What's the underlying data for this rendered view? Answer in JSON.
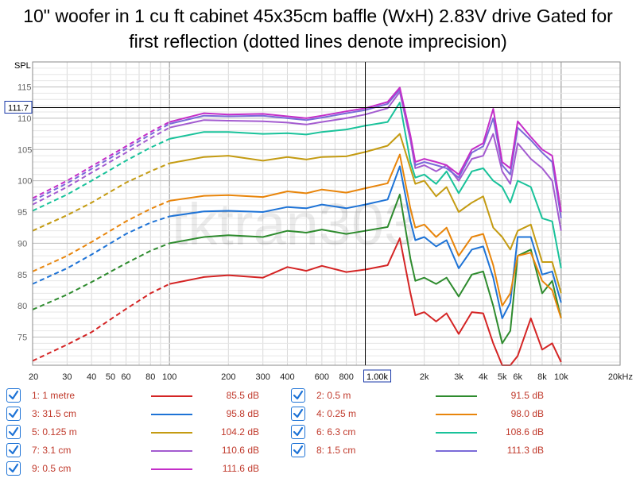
{
  "title": {
    "line1": "10\" woofer in 1 cu ft cabinet 45x35cm baffle (WxH) 2.83V drive Gated for",
    "line2": "first reflection (dotted lines denote imprecision)"
  },
  "chart_data": {
    "type": "line",
    "title": "10\" woofer in 1 cu ft cabinet 45x35cm baffle (WxH) 2.83V drive Gated for first reflection (dotted lines denote imprecision)",
    "ylabel": "SPL",
    "xlabel": "",
    "xscale": "log",
    "xlim": [
      20,
      20000
    ],
    "ylim": [
      70.5,
      119
    ],
    "x_ticks": [
      {
        "v": 20,
        "label": "20"
      },
      {
        "v": 30,
        "label": "30"
      },
      {
        "v": 40,
        "label": "40"
      },
      {
        "v": 50,
        "label": "50"
      },
      {
        "v": 60,
        "label": "60"
      },
      {
        "v": 80,
        "label": "80"
      },
      {
        "v": 100,
        "label": "100"
      },
      {
        "v": 200,
        "label": "200"
      },
      {
        "v": 300,
        "label": "300"
      },
      {
        "v": 400,
        "label": "400"
      },
      {
        "v": 600,
        "label": "600"
      },
      {
        "v": 800,
        "label": "800"
      },
      {
        "v": 2000,
        "label": "2k"
      },
      {
        "v": 3000,
        "label": "3k"
      },
      {
        "v": 4000,
        "label": "4k"
      },
      {
        "v": 5000,
        "label": "5k"
      },
      {
        "v": 6000,
        "label": "6k"
      },
      {
        "v": 8000,
        "label": "8k"
      },
      {
        "v": 10000,
        "label": "10k"
      },
      {
        "v": 20000,
        "label": "20kHz"
      }
    ],
    "y_ticks": [
      75,
      80,
      85,
      90,
      95,
      100,
      105,
      110,
      115
    ],
    "cursor": {
      "x": 1000,
      "x_label": "1.00k",
      "y": 111.7,
      "y_label": "111.7"
    },
    "watermark": "tktran303",
    "dashed_below_hz": 100,
    "series": [
      {
        "name": "1: 1 metre",
        "value_label": "85.5 dB",
        "color": "#d42424",
        "x": [
          20,
          30,
          40,
          60,
          80,
          100,
          150,
          200,
          300,
          400,
          500,
          600,
          800,
          1000,
          1300,
          1500,
          1700,
          1800,
          2000,
          2300,
          2600,
          3000,
          3500,
          4000,
          4500,
          5000,
          5500,
          6000,
          7000,
          8000,
          9000,
          10000
        ],
        "y": [
          71.2,
          73.8,
          75.8,
          79.5,
          82.0,
          83.5,
          84.6,
          84.9,
          84.5,
          86.2,
          85.6,
          86.4,
          85.4,
          85.8,
          86.5,
          90.8,
          82.0,
          78.5,
          79.0,
          77.5,
          78.8,
          75.5,
          79.0,
          78.8,
          74.0,
          70.0,
          70.5,
          72.0,
          78.0,
          73.0,
          74.0,
          71.0
        ]
      },
      {
        "name": "2: 0.5 m",
        "value_label": "91.5 dB",
        "color": "#2e8b2e",
        "x": [
          20,
          30,
          40,
          60,
          80,
          100,
          150,
          200,
          300,
          400,
          500,
          600,
          800,
          1000,
          1300,
          1500,
          1700,
          1800,
          2000,
          2300,
          2600,
          3000,
          3500,
          4000,
          4500,
          5000,
          5500,
          6000,
          7000,
          8000,
          9000,
          10000
        ],
        "y": [
          79.4,
          81.8,
          83.8,
          86.8,
          88.8,
          90.0,
          91.0,
          91.3,
          91.0,
          92.0,
          91.7,
          92.2,
          91.5,
          92.0,
          92.6,
          97.8,
          87.5,
          84.0,
          84.5,
          83.5,
          84.5,
          81.5,
          85.0,
          85.5,
          80.0,
          74.0,
          76.0,
          88.0,
          89.0,
          82.0,
          84.0,
          78.0
        ]
      },
      {
        "name": "3: 31.5 cm",
        "value_label": "95.8 dB",
        "color": "#1e73d6",
        "x": [
          20,
          30,
          40,
          60,
          80,
          100,
          150,
          200,
          300,
          400,
          500,
          600,
          800,
          1000,
          1300,
          1500,
          1700,
          1800,
          2000,
          2300,
          2600,
          3000,
          3500,
          4000,
          4500,
          5000,
          5500,
          6000,
          7000,
          8000,
          9000,
          10000
        ],
        "y": [
          83.5,
          86.0,
          88.2,
          91.5,
          93.3,
          94.3,
          95.1,
          95.2,
          95.0,
          95.8,
          95.6,
          96.2,
          95.6,
          96.2,
          97.0,
          102.3,
          93.5,
          90.5,
          91.0,
          89.5,
          90.5,
          86.0,
          89.0,
          89.5,
          84.5,
          78.0,
          80.5,
          91.0,
          91.0,
          85.0,
          85.5,
          80.5
        ]
      },
      {
        "name": "4: 0.25 m",
        "value_label": "98.0 dB",
        "color": "#e8850b",
        "x": [
          20,
          30,
          40,
          60,
          80,
          100,
          150,
          200,
          300,
          400,
          500,
          600,
          800,
          1000,
          1300,
          1500,
          1700,
          1800,
          2000,
          2300,
          2600,
          3000,
          3500,
          4000,
          4500,
          5000,
          5500,
          6000,
          7000,
          8000,
          9000,
          10000
        ],
        "y": [
          85.5,
          88.0,
          90.2,
          93.5,
          95.5,
          96.8,
          97.6,
          97.7,
          97.4,
          98.3,
          98.0,
          98.6,
          98.1,
          98.8,
          99.6,
          104.2,
          95.5,
          92.5,
          93.0,
          91.0,
          92.5,
          88.0,
          91.0,
          91.5,
          86.5,
          80.0,
          82.0,
          88.0,
          88.5,
          84.0,
          82.5,
          78.0
        ]
      },
      {
        "name": "5: 0.125 m",
        "value_label": "104.2 dB",
        "color": "#c49b12",
        "x": [
          20,
          30,
          40,
          60,
          80,
          100,
          150,
          200,
          300,
          400,
          500,
          600,
          800,
          1000,
          1300,
          1500,
          1700,
          1800,
          2000,
          2300,
          2600,
          3000,
          3500,
          4000,
          4500,
          5000,
          5500,
          6000,
          7000,
          8000,
          9000,
          10000
        ],
        "y": [
          92.0,
          94.5,
          96.5,
          99.7,
          101.5,
          102.8,
          103.8,
          104.0,
          103.2,
          103.8,
          103.4,
          103.8,
          103.9,
          104.6,
          105.6,
          107.5,
          102.0,
          99.5,
          100.0,
          97.5,
          99.0,
          95.0,
          96.5,
          97.5,
          92.5,
          91.0,
          89.0,
          92.0,
          93.0,
          87.0,
          87.0,
          82.0
        ]
      },
      {
        "name": "6: 6.3 cm",
        "value_label": "108.6 dB",
        "color": "#19c29a",
        "x": [
          20,
          30,
          40,
          60,
          80,
          100,
          150,
          200,
          300,
          400,
          500,
          600,
          800,
          1000,
          1300,
          1500,
          1700,
          1800,
          2000,
          2300,
          2600,
          3000,
          3500,
          4000,
          4500,
          5000,
          5500,
          6000,
          7000,
          8000,
          9000,
          10000
        ],
        "y": [
          95.2,
          97.8,
          100.0,
          103.2,
          105.3,
          106.7,
          107.8,
          107.8,
          107.5,
          107.6,
          107.4,
          107.8,
          108.2,
          108.8,
          109.4,
          112.5,
          103.0,
          100.5,
          101.0,
          99.5,
          101.5,
          98.0,
          101.5,
          102.0,
          100.0,
          99.0,
          96.5,
          100.0,
          99.0,
          94.0,
          93.5,
          86.0
        ]
      },
      {
        "name": "7: 3.1 cm",
        "value_label": "110.6 dB",
        "color": "#a35bd0",
        "x": [
          20,
          30,
          40,
          60,
          80,
          100,
          150,
          200,
          300,
          400,
          500,
          600,
          800,
          1000,
          1300,
          1500,
          1700,
          1800,
          2000,
          2300,
          2600,
          3000,
          3500,
          4000,
          4500,
          5000,
          5500,
          6000,
          7000,
          8000,
          9000,
          10000
        ],
        "y": [
          96.2,
          99.0,
          101.3,
          104.5,
          106.8,
          108.5,
          109.7,
          109.6,
          109.5,
          109.3,
          109.0,
          109.4,
          110.0,
          110.6,
          111.6,
          114.2,
          106.5,
          102.0,
          102.5,
          101.5,
          102.5,
          100.0,
          103.5,
          104.0,
          107.5,
          101.5,
          99.5,
          106.0,
          103.5,
          102.0,
          100.0,
          92.0
        ]
      },
      {
        "name": "8: 1.5 cm",
        "value_label": "111.3 dB",
        "color": "#7a6ad8",
        "x": [
          20,
          30,
          40,
          60,
          80,
          100,
          150,
          200,
          300,
          400,
          500,
          600,
          800,
          1000,
          1300,
          1500,
          1700,
          1800,
          2000,
          2300,
          2600,
          3000,
          3500,
          4000,
          4500,
          5000,
          5500,
          6000,
          7000,
          8000,
          9000,
          10000
        ],
        "y": [
          96.8,
          99.6,
          101.9,
          105.1,
          107.4,
          109.1,
          110.4,
          110.3,
          110.4,
          110.0,
          109.7,
          110.1,
          110.8,
          111.3,
          112.3,
          114.6,
          106.9,
          102.5,
          103.0,
          102.5,
          102.0,
          100.5,
          104.5,
          105.5,
          110.0,
          102.5,
          101.0,
          108.5,
          106.5,
          104.5,
          103.0,
          94.0
        ]
      },
      {
        "name": "9: 0.5 cm",
        "value_label": "111.6 dB",
        "color": "#c42ec8",
        "x": [
          20,
          30,
          40,
          60,
          80,
          100,
          150,
          200,
          300,
          400,
          500,
          600,
          800,
          1000,
          1300,
          1500,
          1700,
          1800,
          2000,
          2300,
          2600,
          3000,
          3500,
          4000,
          4500,
          5000,
          5500,
          6000,
          7000,
          8000,
          9000,
          10000
        ],
        "y": [
          97.2,
          100.0,
          102.3,
          105.5,
          107.8,
          109.4,
          110.8,
          110.6,
          110.7,
          110.3,
          110.0,
          110.4,
          111.1,
          111.6,
          112.6,
          114.9,
          107.2,
          103.0,
          103.5,
          103.0,
          102.5,
          101.0,
          105.0,
          106.0,
          111.5,
          103.0,
          102.0,
          109.5,
          107.0,
          105.0,
          104.0,
          95.0
        ]
      }
    ]
  }
}
